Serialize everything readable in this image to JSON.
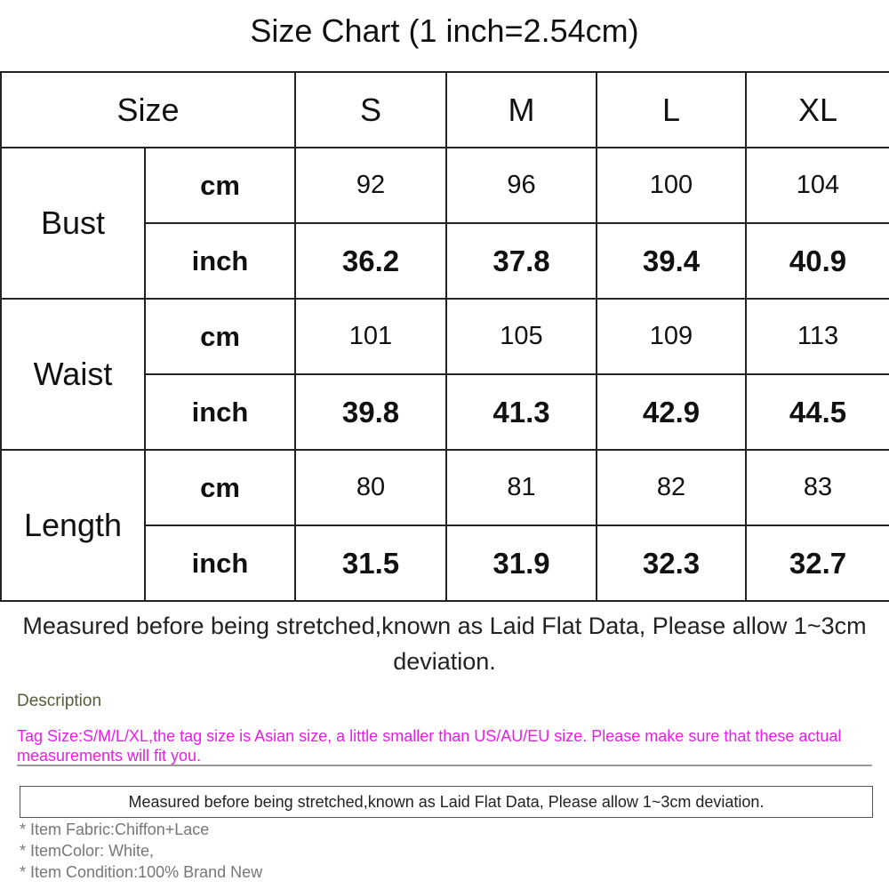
{
  "title": "Size Chart (1 inch=2.54cm)",
  "table": {
    "size_label": "Size",
    "sizes": [
      "S",
      "M",
      "L",
      "XL"
    ],
    "rows": [
      {
        "name": "Bust",
        "cm_label": "cm",
        "inch_label": "inch",
        "cm": [
          "92",
          "96",
          "100",
          "104"
        ],
        "inch": [
          "36.2",
          "37.8",
          "39.4",
          "40.9"
        ]
      },
      {
        "name": "Waist",
        "cm_label": "cm",
        "inch_label": "inch",
        "cm": [
          "101",
          "105",
          "109",
          "113"
        ],
        "inch": [
          "39.8",
          "41.3",
          "42.9",
          "44.5"
        ]
      },
      {
        "name": "Length",
        "cm_label": "cm",
        "inch_label": "inch",
        "cm": [
          "80",
          "81",
          "82",
          "83"
        ],
        "inch": [
          "31.5",
          "31.9",
          "32.3",
          "32.7"
        ]
      }
    ]
  },
  "note": "Measured before being stretched,known as Laid Flat Data, Please allow 1~3cm deviation.",
  "description": {
    "heading": "Description",
    "tag_text": "Tag Size:S/M/L/XL,the tag size is Asian size, a little smaller than US/AU/EU size. Please make sure that these actual measurements will fit you.",
    "box_text": "Measured before being stretched,known as Laid Flat Data, Please allow 1~3cm deviation.",
    "items": [
      "* Item Fabric:Chiffon+Lace",
      "* ItemColor: White,",
      "* Item Condition:100% Brand New"
    ]
  },
  "colors": {
    "tag_text": "#e81ee8"
  }
}
